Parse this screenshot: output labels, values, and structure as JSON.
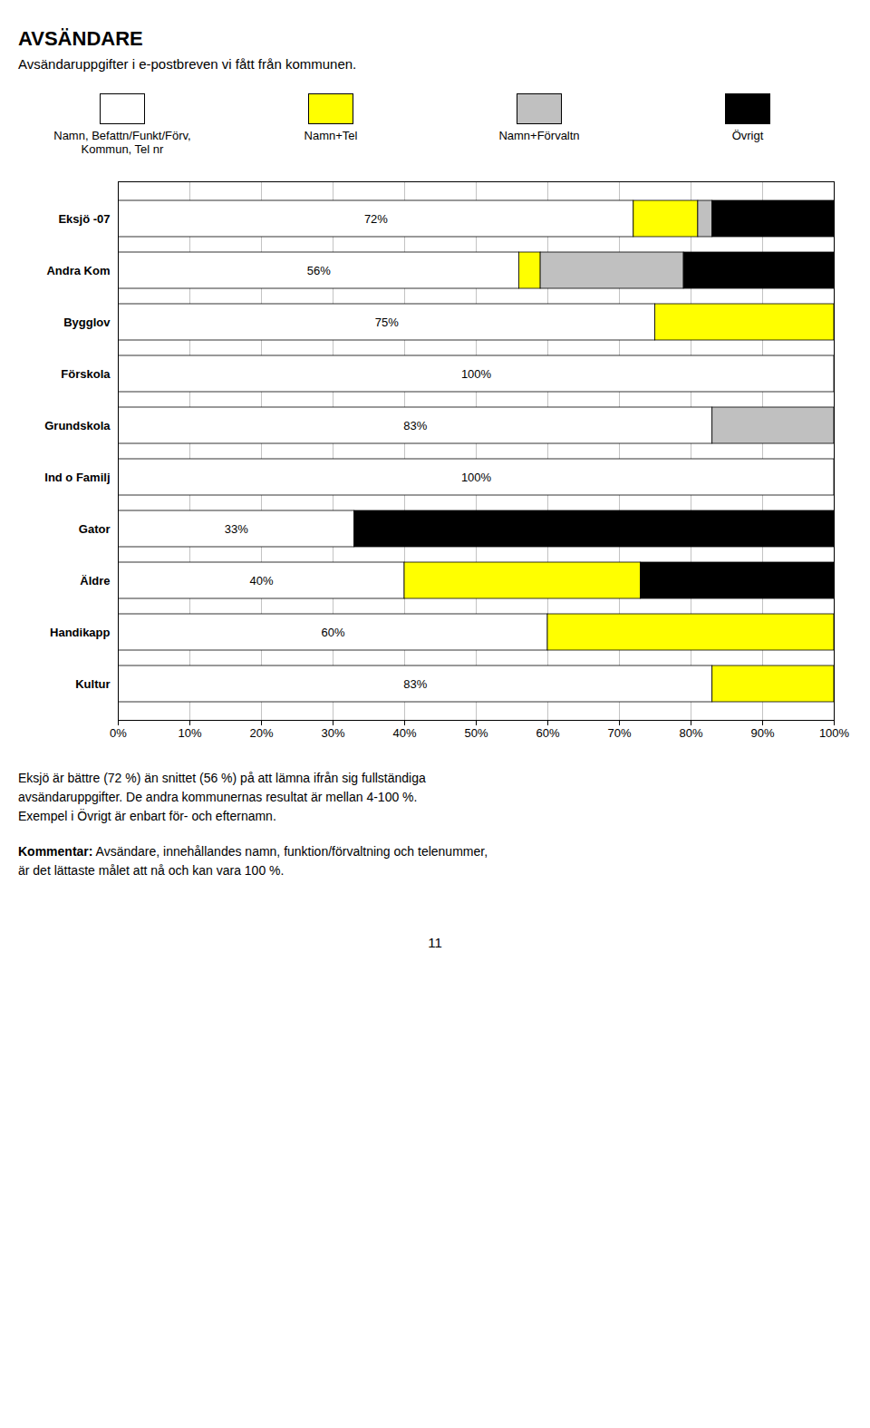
{
  "chart_data": {
    "type": "bar",
    "orientation": "horizontal",
    "stacked": true,
    "title": "AVSÄNDARE",
    "subtitle": "Avsändaruppgifter i e-postbreven vi fått från kommunen.",
    "categories": [
      "Eksjö -07",
      "Andra Kom",
      "Bygglov",
      "Förskola",
      "Grundskola",
      "Ind o Familj",
      "Gator",
      "Äldre",
      "Handikapp",
      "Kultur"
    ],
    "series": [
      {
        "name": "Namn, Befattn/Funkt/Förv,\nKommun, Tel nr",
        "color": "#FFFFFF",
        "values": [
          72,
          56,
          75,
          100,
          83,
          100,
          33,
          40,
          60,
          83
        ],
        "data_labels": true,
        "value_labels": [
          "72%",
          "56%",
          "75%",
          "100%",
          "83%",
          "100%",
          "33%",
          "40%",
          "60%",
          "83%"
        ]
      },
      {
        "name": "Namn+Tel",
        "color": "#FFFF00",
        "values": [
          9,
          3,
          25,
          0,
          0,
          0,
          0,
          33,
          40,
          17
        ]
      },
      {
        "name": "Namn+Förvaltn",
        "color": "#C0C0C0",
        "values": [
          2,
          20,
          0,
          0,
          17,
          0,
          0,
          0,
          0,
          0
        ]
      },
      {
        "name": "Övrigt",
        "color": "#000000",
        "values": [
          17,
          21,
          0,
          0,
          0,
          0,
          67,
          27,
          0,
          0
        ]
      }
    ],
    "xlim": [
      0,
      100
    ],
    "xticks": [
      {
        "value": 0,
        "label": "0%"
      },
      {
        "value": 10,
        "label": "10%"
      },
      {
        "value": 20,
        "label": "20%"
      },
      {
        "value": 30,
        "label": "30%"
      },
      {
        "value": 40,
        "label": "40%"
      },
      {
        "value": 50,
        "label": "50%"
      },
      {
        "value": 60,
        "label": "60%"
      },
      {
        "value": 70,
        "label": "70%"
      },
      {
        "value": 80,
        "label": "80%"
      },
      {
        "value": 90,
        "label": "90%"
      },
      {
        "value": 100,
        "label": "100%"
      }
    ],
    "grid": true,
    "annotations": [
      "Eksjö är bättre (72 %) än snittet (56 %) på att lämna ifrån sig fullständiga\navsändaruppgifter. De andra kommunernas resultat är mellan 4-100 %.\nExempel i Övrigt är enbart för- och efternamn.",
      "Kommentar: Avsändare, innehållandes namn, funktion/förvaltning och telenummer,\när det lättaste målet att nå och kan vara 100 %.",
      "11"
    ]
  }
}
